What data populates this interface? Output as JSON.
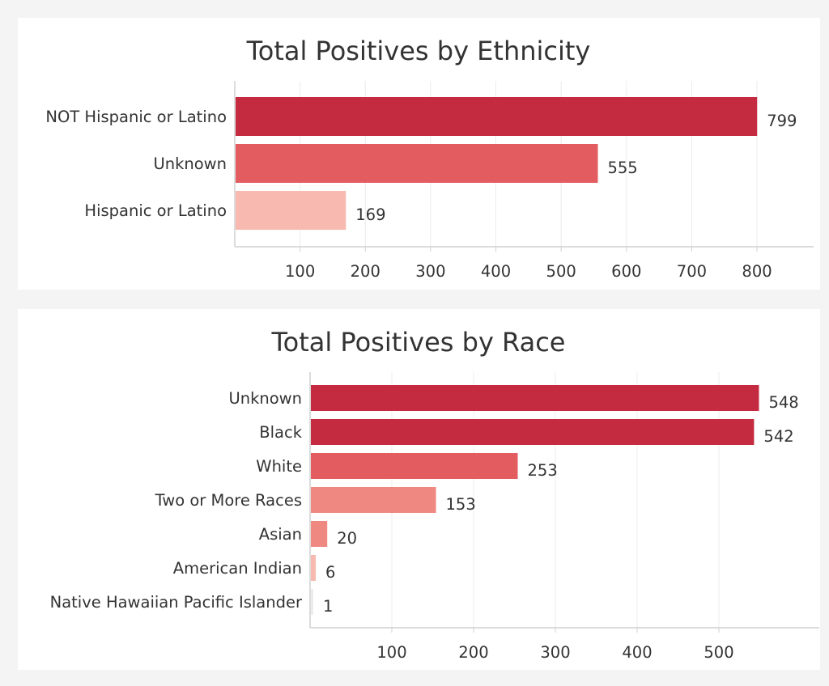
{
  "chart_data": [
    {
      "type": "bar",
      "orientation": "horizontal",
      "title": "Total Positives by Ethnicity",
      "categories": [
        "NOT Hispanic or Latino",
        "Unknown",
        "Hispanic or Latino"
      ],
      "values": [
        799,
        555,
        169
      ],
      "colors": [
        "#c42b40",
        "#e35d60",
        "#f7b9b0"
      ],
      "xticks": [
        100,
        200,
        300,
        400,
        500,
        600,
        700,
        800
      ],
      "xlim": [
        0,
        880
      ],
      "grid": true,
      "data_labels": [
        "799",
        "555",
        "169"
      ]
    },
    {
      "type": "bar",
      "orientation": "horizontal",
      "title": "Total Positives by Race",
      "categories": [
        "Unknown",
        "Black",
        "White",
        "Two or More Races",
        "Asian",
        "American Indian",
        "Native Hawaiian Pacific Islander"
      ],
      "values": [
        548,
        542,
        253,
        153,
        20,
        6,
        1
      ],
      "colors": [
        "#c42b40",
        "#c42b40",
        "#e35d60",
        "#ef8880",
        "#ef8880",
        "#f7b9b0",
        "#ebebeb"
      ],
      "xticks": [
        100,
        200,
        300,
        400,
        500
      ],
      "xlim": [
        0,
        620
      ],
      "grid": true,
      "data_labels": [
        "548",
        "542",
        "253",
        "153",
        "20",
        "6",
        "1"
      ]
    }
  ]
}
